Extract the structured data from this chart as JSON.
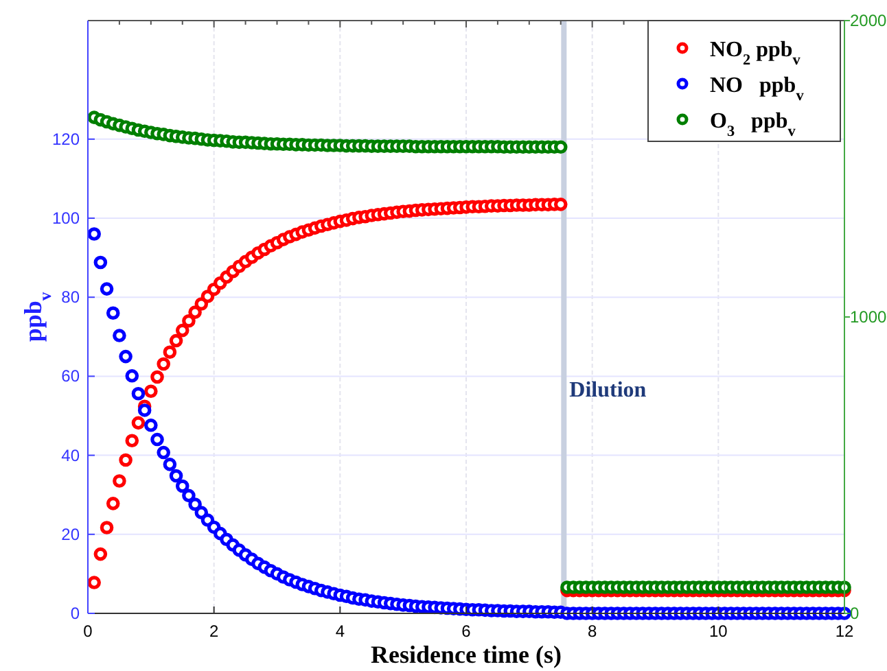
{
  "chart_data": {
    "type": "scatter",
    "xlabel": "Residence time (s)",
    "ylabel": "ppb$_{v}$",
    "x": [
      0.1,
      0.2,
      0.3,
      0.4,
      0.5,
      0.6,
      0.7,
      0.8,
      0.9,
      1.0,
      1.1,
      1.2,
      1.3,
      1.4,
      1.5,
      1.6,
      1.7,
      1.8,
      1.9,
      2.0,
      2.1,
      2.2,
      2.3,
      2.4,
      2.5,
      2.6,
      2.7,
      2.8,
      2.9,
      3.0,
      3.1,
      3.2,
      3.3,
      3.4,
      3.5,
      3.6,
      3.7,
      3.8,
      3.9,
      4.0,
      4.1,
      4.2,
      4.3,
      4.4,
      4.5,
      4.6,
      4.7,
      4.8,
      4.9,
      5.0,
      5.1,
      5.2,
      5.3,
      5.4,
      5.5,
      5.6,
      5.7,
      5.8,
      5.9,
      6.0,
      6.1,
      6.2,
      6.3,
      6.4,
      6.5,
      6.6,
      6.7,
      6.8,
      6.9,
      7.0,
      7.1,
      7.2,
      7.3,
      7.4,
      7.5,
      7.6,
      7.7,
      7.8,
      7.9,
      8.0,
      8.1,
      8.2,
      8.3,
      8.4,
      8.5,
      8.6,
      8.7,
      8.8,
      8.9,
      9.0,
      9.1,
      9.2,
      9.3,
      9.4,
      9.5,
      9.6,
      9.7,
      9.8,
      9.9,
      10.0,
      10.1,
      10.2,
      10.3,
      10.4,
      10.5,
      10.6,
      10.7,
      10.8,
      10.9,
      11.0,
      11.1,
      11.2,
      11.3,
      11.4,
      11.5,
      11.6,
      11.7,
      11.8,
      11.9,
      12.0
    ],
    "series": [
      {
        "name": "NO$_{2}$ ppb$_{v}$",
        "color": "#ff0000",
        "values": [
          7.8,
          15.0,
          21.7,
          27.8,
          33.5,
          38.8,
          43.7,
          48.2,
          52.4,
          56.2,
          59.8,
          63.1,
          66.1,
          69.0,
          71.6,
          74.0,
          76.2,
          78.3,
          80.2,
          82.0,
          83.6,
          85.1,
          86.5,
          87.8,
          89.0,
          90.1,
          91.2,
          92.1,
          93.0,
          93.8,
          94.6,
          95.3,
          95.9,
          96.5,
          97.0,
          97.5,
          98.0,
          98.4,
          98.8,
          99.2,
          99.5,
          99.9,
          100.2,
          100.4,
          100.7,
          100.9,
          101.1,
          101.3,
          101.5,
          101.7,
          101.8,
          102.0,
          102.1,
          102.2,
          102.3,
          102.4,
          102.5,
          102.6,
          102.7,
          102.8,
          102.9,
          102.9,
          103.0,
          103.1,
          103.1,
          103.2,
          103.2,
          103.3,
          103.3,
          103.3,
          103.4,
          103.4,
          103.4,
          103.5,
          103.5,
          5.8,
          5.8,
          5.8,
          5.8,
          5.8,
          5.8,
          5.8,
          5.8,
          5.8,
          5.8,
          5.8,
          5.8,
          5.8,
          5.8,
          5.8,
          5.8,
          5.8,
          5.8,
          5.8,
          5.8,
          5.8,
          5.8,
          5.8,
          5.8,
          5.8,
          5.8,
          5.8,
          5.8,
          5.8,
          5.8,
          5.8,
          5.8,
          5.8,
          5.8,
          5.8,
          5.8,
          5.8,
          5.8,
          5.8,
          5.8,
          5.8,
          5.8,
          5.8,
          5.8,
          5.8
        ]
      },
      {
        "name": "NO   ppb$_{v}$",
        "color": "#0000ff",
        "values": [
          96,
          88.8,
          82.1,
          76.0,
          70.3,
          65.0,
          60.1,
          55.6,
          51.4,
          47.6,
          44.0,
          40.7,
          37.7,
          34.8,
          32.2,
          29.8,
          27.6,
          25.5,
          23.6,
          21.8,
          20.2,
          18.7,
          17.3,
          16.0,
          14.8,
          13.7,
          12.6,
          11.7,
          10.8,
          10.0,
          9.2,
          8.5,
          7.9,
          7.3,
          6.8,
          6.3,
          5.8,
          5.4,
          5.0,
          4.6,
          4.3,
          3.9,
          3.6,
          3.4,
          3.1,
          2.9,
          2.7,
          2.5,
          2.3,
          2.1,
          2.0,
          1.8,
          1.7,
          1.6,
          1.5,
          1.4,
          1.3,
          1.2,
          1.1,
          1.0,
          0.9,
          0.9,
          0.8,
          0.7,
          0.7,
          0.6,
          0.6,
          0.5,
          0.5,
          0.5,
          0.4,
          0.4,
          0.4,
          0.3,
          0.3,
          0,
          0,
          0,
          0,
          0,
          0,
          0,
          0,
          0,
          0,
          0,
          0,
          0,
          0,
          0,
          0,
          0,
          0,
          0,
          0,
          0,
          0,
          0,
          0,
          0,
          0,
          0,
          0,
          0,
          0,
          0,
          0,
          0,
          0,
          0,
          0,
          0,
          0,
          0,
          0,
          0,
          0,
          0,
          0,
          0
        ]
      },
      {
        "name": "O$_{3}$   ppb$_{v}$",
        "color": "#007f00",
        "values": [
          125.5,
          124.9,
          124.4,
          123.9,
          123.5,
          123.1,
          122.7,
          122.3,
          122.0,
          121.7,
          121.4,
          121.2,
          120.9,
          120.7,
          120.5,
          120.3,
          120.2,
          120.0,
          119.8,
          119.7,
          119.6,
          119.5,
          119.3,
          119.2,
          119.2,
          119.1,
          119.0,
          118.9,
          118.8,
          118.8,
          118.7,
          118.7,
          118.6,
          118.6,
          118.5,
          118.5,
          118.5,
          118.4,
          118.4,
          118.4,
          118.3,
          118.3,
          118.3,
          118.3,
          118.2,
          118.2,
          118.2,
          118.2,
          118.2,
          118.2,
          118.2,
          118.1,
          118.1,
          118.1,
          118.1,
          118.1,
          118.1,
          118.1,
          118.1,
          118.1,
          118.1,
          118.1,
          118.1,
          118.1,
          118.1,
          118.0,
          118.0,
          118.0,
          118.0,
          118.0,
          118.0,
          118.0,
          118.0,
          118.0,
          118.0,
          6.6,
          6.6,
          6.6,
          6.6,
          6.6,
          6.6,
          6.6,
          6.6,
          6.6,
          6.6,
          6.6,
          6.6,
          6.6,
          6.6,
          6.6,
          6.6,
          6.6,
          6.6,
          6.6,
          6.6,
          6.6,
          6.6,
          6.6,
          6.6,
          6.6,
          6.6,
          6.6,
          6.6,
          6.6,
          6.6,
          6.6,
          6.6,
          6.6,
          6.6,
          6.6,
          6.6,
          6.6,
          6.6,
          6.6,
          6.6,
          6.6,
          6.6,
          6.6,
          6.6,
          6.6
        ]
      }
    ],
    "xlim": [
      0,
      12
    ],
    "xticks": [
      0,
      2,
      4,
      6,
      8,
      10,
      12
    ],
    "ylim": [
      0,
      150
    ],
    "yticks": [
      0,
      20,
      40,
      60,
      80,
      100,
      120
    ],
    "y2lim": [
      0,
      2000
    ],
    "y2ticks": [
      0,
      1000,
      2000
    ],
    "ref_lines": [
      {
        "axis": "x",
        "value": 7.55,
        "label": "Dilution",
        "color": "#c8d0e0"
      }
    ],
    "grid": true,
    "legend": "top right",
    "marker": "circle"
  }
}
